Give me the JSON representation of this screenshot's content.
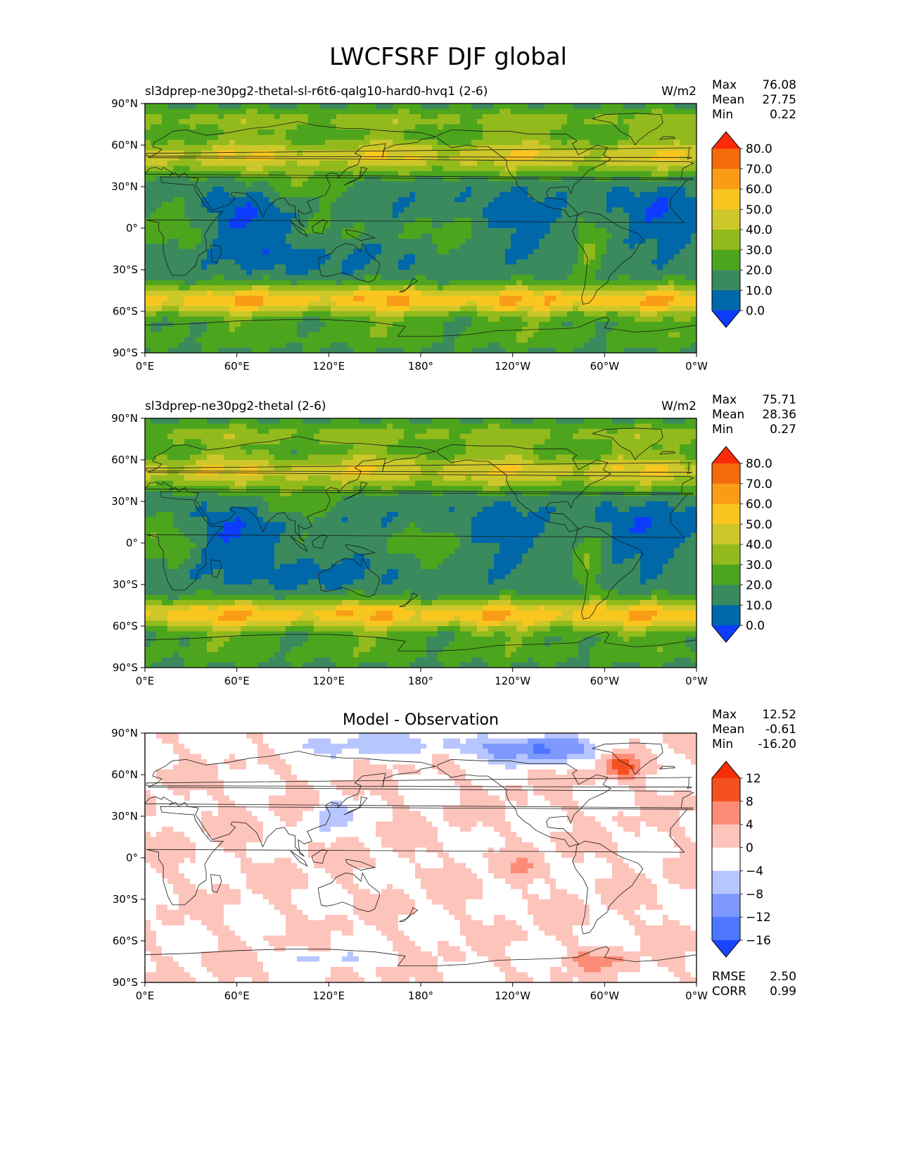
{
  "figure": {
    "title": "LWCFSRF DJF global"
  },
  "lon_ticks": [
    "0°E",
    "60°E",
    "120°E",
    "180°",
    "120°W",
    "60°W",
    "0°W"
  ],
  "lat_ticks": [
    "90°N",
    "60°N",
    "30°N",
    "0°",
    "30°S",
    "60°S",
    "90°S"
  ],
  "stat_labels": {
    "max": "Max",
    "mean": "Mean",
    "min": "Min",
    "rmse": "RMSE",
    "corr": "CORR"
  },
  "colors": {
    "abs": [
      "#0d3cff",
      "#0068a8",
      "#3a8a5e",
      "#4da51e",
      "#93ba1c",
      "#cdc72a",
      "#f9c620",
      "#f99c16",
      "#f56b0c",
      "#fa2a0a"
    ],
    "diff": [
      "#1c45ff",
      "#4d77ff",
      "#7d99ff",
      "#b8c6ff",
      "#ffffff",
      "#fdc4bb",
      "#fc8c76",
      "#f5501f",
      "#f52e0a"
    ]
  },
  "chart_data": [
    {
      "type": "heatmap",
      "title": "sl3dprep-ne30pg2-thetal-sl-r6t6-qalg10-hard0-hvq1 (2-6)",
      "units": "W/m2",
      "stats": {
        "max": "76.08",
        "mean": "27.75",
        "min": "0.22"
      },
      "xlim": [
        0,
        360
      ],
      "ylim": [
        -90,
        90
      ],
      "colorbar": {
        "levels": [
          "0.0",
          "10.0",
          "20.0",
          "30.0",
          "40.0",
          "50.0",
          "60.0",
          "70.0",
          "80.0"
        ],
        "extend": "both"
      }
    },
    {
      "type": "heatmap",
      "title": "sl3dprep-ne30pg2-thetal (2-6)",
      "units": "W/m2",
      "stats": {
        "max": "75.71",
        "mean": "28.36",
        "min": "0.27"
      },
      "xlim": [
        0,
        360
      ],
      "ylim": [
        -90,
        90
      ],
      "colorbar": {
        "levels": [
          "0.0",
          "10.0",
          "20.0",
          "30.0",
          "40.0",
          "50.0",
          "60.0",
          "70.0",
          "80.0"
        ],
        "extend": "both"
      }
    },
    {
      "type": "heatmap",
      "title": "Model - Observation",
      "units": "",
      "stats": {
        "max": "12.52",
        "mean": "-0.61",
        "min": "-16.20",
        "rmse": "2.50",
        "corr": "0.99"
      },
      "xlim": [
        0,
        360
      ],
      "ylim": [
        -90,
        90
      ],
      "colorbar": {
        "levels": [
          "−16",
          "−12",
          "−8",
          "−4",
          "0",
          "4",
          "8",
          "12"
        ],
        "extend": "both"
      }
    }
  ]
}
